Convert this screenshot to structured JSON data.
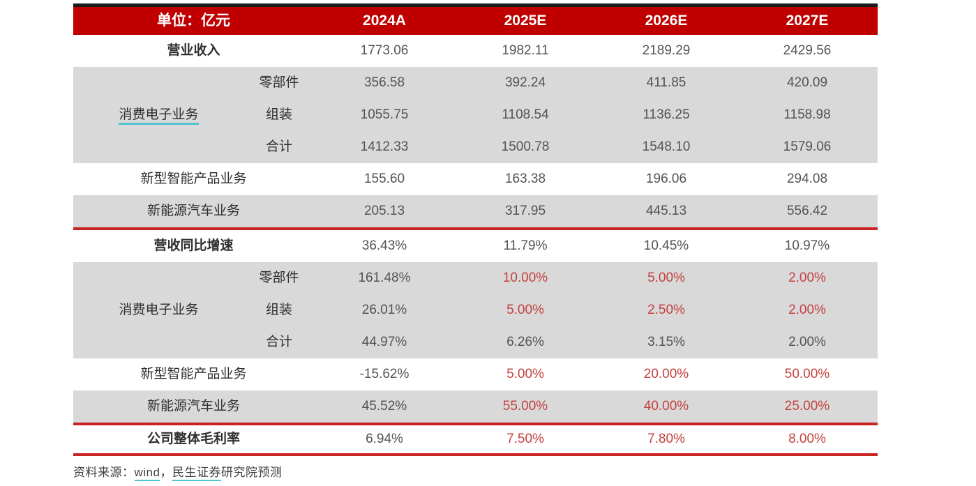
{
  "colors": {
    "header_bg": "#C00000",
    "header_text": "#FFFFFF",
    "divider_red": "#C82423",
    "top_bar": "#1A1A1A",
    "row_gray": "#D9D9D9",
    "text_dark": "#2E2E2E",
    "value_gray": "#545454",
    "value_red": "#C3423F",
    "link_underline": "#4FC4CE",
    "page_bg": "#FFFFFF"
  },
  "header": {
    "unit_label": "单位：亿元",
    "years": [
      "2024A",
      "2025E",
      "2026E",
      "2027E"
    ]
  },
  "table": {
    "revenue": {
      "label": "营业收入",
      "values": [
        "1773.06",
        "1982.11",
        "2189.29",
        "2429.56"
      ]
    },
    "consumer_electronics_label": "消费电子业务",
    "ce_parts": {
      "label": "零部件",
      "values": [
        "356.58",
        "392.24",
        "411.85",
        "420.09"
      ]
    },
    "ce_assembly": {
      "label": "组装",
      "values": [
        "1055.75",
        "1108.54",
        "1136.25",
        "1158.98"
      ]
    },
    "ce_total": {
      "label": "合计",
      "values": [
        "1412.33",
        "1500.78",
        "1548.10",
        "1579.06"
      ]
    },
    "smart_products": {
      "label": "新型智能产品业务",
      "values": [
        "155.60",
        "163.38",
        "196.06",
        "294.08"
      ]
    },
    "nev": {
      "label": "新能源汽车业务",
      "values": [
        "205.13",
        "317.95",
        "445.13",
        "556.42"
      ]
    },
    "growth": {
      "label": "营收同比增速",
      "values": [
        "36.43%",
        "11.79%",
        "10.45%",
        "10.97%"
      ]
    },
    "growth_consumer_electronics_label": "消费电子业务",
    "g_ce_parts": {
      "label": "零部件",
      "values": [
        "161.48%",
        "10.00%",
        "5.00%",
        "2.00%"
      ]
    },
    "g_ce_assembly": {
      "label": "组装",
      "values": [
        "26.01%",
        "5.00%",
        "2.50%",
        "2.00%"
      ]
    },
    "g_ce_total": {
      "label": "合计",
      "values": [
        "44.97%",
        "6.26%",
        "3.15%",
        "2.00%"
      ]
    },
    "g_smart_products": {
      "label": "新型智能产品业务",
      "values": [
        "-15.62%",
        "5.00%",
        "20.00%",
        "50.00%"
      ]
    },
    "g_nev": {
      "label": "新能源汽车业务",
      "values": [
        "45.52%",
        "55.00%",
        "40.00%",
        "25.00%"
      ]
    },
    "gross_margin": {
      "label": "公司整体毛利率",
      "values": [
        "6.94%",
        "7.50%",
        "7.80%",
        "8.00%"
      ]
    }
  },
  "footer": {
    "prefix": "资料来源：",
    "source_link": "wind",
    "separator": "，",
    "org_link": "民生证券",
    "suffix": "研究院预测"
  },
  "chart_data": {
    "type": "table",
    "title": "单位：亿元",
    "columns": [
      "",
      "",
      "2024A",
      "2025E",
      "2026E",
      "2027E"
    ],
    "rows": [
      [
        "营业收入",
        "",
        "1773.06",
        "1982.11",
        "2189.29",
        "2429.56"
      ],
      [
        "消费电子业务",
        "零部件",
        "356.58",
        "392.24",
        "411.85",
        "420.09"
      ],
      [
        "消费电子业务",
        "组装",
        "1055.75",
        "1108.54",
        "1136.25",
        "1158.98"
      ],
      [
        "消费电子业务",
        "合计",
        "1412.33",
        "1500.78",
        "1548.10",
        "1579.06"
      ],
      [
        "新型智能产品业务",
        "",
        "155.60",
        "163.38",
        "196.06",
        "294.08"
      ],
      [
        "新能源汽车业务",
        "",
        "205.13",
        "317.95",
        "445.13",
        "556.42"
      ],
      [
        "营收同比增速",
        "",
        "36.43%",
        "11.79%",
        "10.45%",
        "10.97%"
      ],
      [
        "消费电子业务",
        "零部件",
        "161.48%",
        "10.00%",
        "5.00%",
        "2.00%"
      ],
      [
        "消费电子业务",
        "组装",
        "26.01%",
        "5.00%",
        "2.50%",
        "2.00%"
      ],
      [
        "消费电子业务",
        "合计",
        "44.97%",
        "6.26%",
        "3.15%",
        "2.00%"
      ],
      [
        "新型智能产品业务",
        "",
        "-15.62%",
        "5.00%",
        "20.00%",
        "50.00%"
      ],
      [
        "新能源汽车业务",
        "",
        "45.52%",
        "55.00%",
        "40.00%",
        "25.00%"
      ],
      [
        "公司整体毛利率",
        "",
        "6.94%",
        "7.50%",
        "7.80%",
        "8.00%"
      ]
    ],
    "source_note": "资料来源：wind，民生证券研究院预测"
  }
}
